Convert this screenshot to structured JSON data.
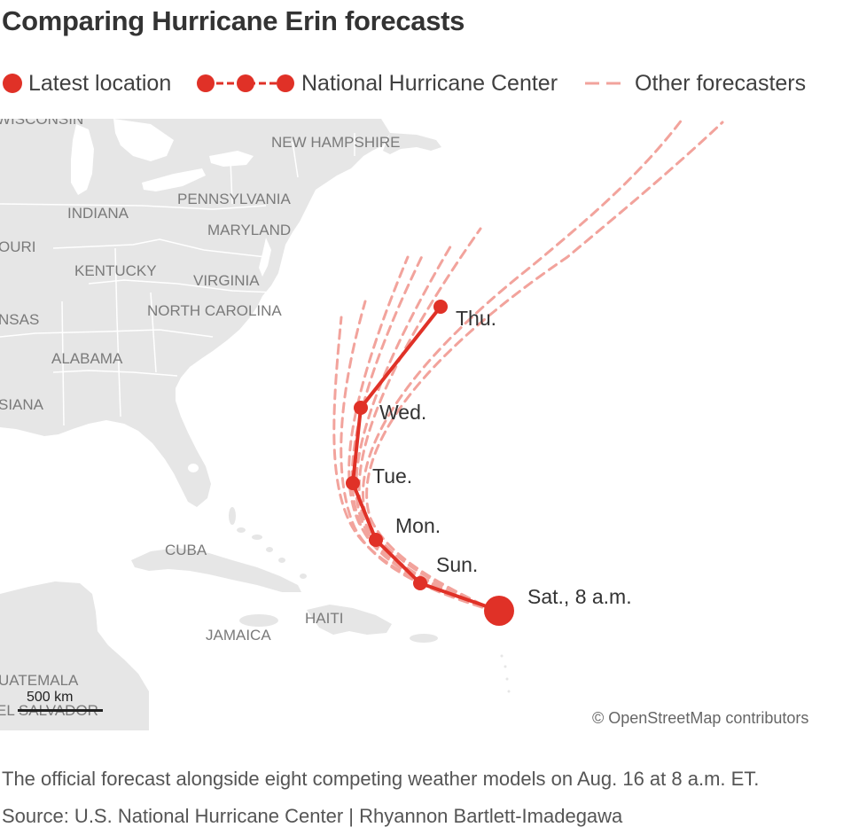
{
  "title": "Comparing Hurricane Erin forecasts",
  "legend": {
    "latest": "Latest location",
    "nhc": "National Hurricane Center",
    "other": "Other forecasters"
  },
  "map": {
    "places": {
      "wisconsin": "WISCONSIN",
      "new_hampshire": "NEW HAMPSHIRE",
      "pennsylvania": "PENNSYLVANIA",
      "indiana": "INDIANA",
      "maryland": "MARYLAND",
      "missouri": "OURI",
      "kentucky": "KENTUCKY",
      "virginia": "VIRGINIA",
      "north_carolina": "NORTH CAROLINA",
      "arkansas": "NSAS",
      "alabama": "ALABAMA",
      "louisiana": "SIANA",
      "cuba": "CUBA",
      "haiti": "HAITI",
      "jamaica": "JAMAICA",
      "guatemala": "UATEMALA",
      "el_salvador": "EL SALVADOR"
    },
    "track_labels": {
      "sat": "Sat., 8 a.m.",
      "sun": "Sun.",
      "mon": "Mon.",
      "tue": "Tue.",
      "wed": "Wed.",
      "thu": "Thu."
    },
    "scale_label": "500 km",
    "attribution": "© OpenStreetMap contributors",
    "colors": {
      "land": "#e6e6e6",
      "water": "#ffffff",
      "track": "#e03127",
      "models": "#f2a39c",
      "place_label": "#7a7a7a"
    }
  },
  "caption": "The official forecast alongside eight competing weather models on Aug. 16 at 8 a.m. ET.",
  "source": "Source: U.S. National Hurricane Center | Rhyannon Bartlett-Imadegawa"
}
